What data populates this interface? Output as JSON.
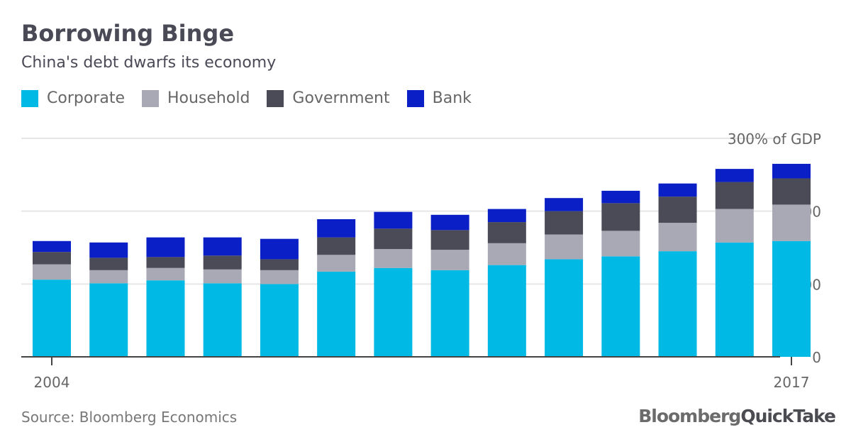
{
  "title": "Borrowing Binge",
  "subtitle": "China's debt dwarfs its economy",
  "source": "Source: Bloomberg Economics",
  "brand": {
    "part1": "Bloomberg",
    "part2": "QuickTake"
  },
  "colors": {
    "Corporate": "#00b9e4",
    "Household": "#a9a8b5",
    "Government": "#4b4b57",
    "Bank": "#0a1fc5"
  },
  "chart_data": {
    "type": "bar",
    "stacked": true,
    "title": "Borrowing Binge",
    "subtitle": "China's debt dwarfs its economy",
    "ylabel": "300% of GDP",
    "ylim": [
      0,
      300
    ],
    "yticks": [
      0,
      100,
      200,
      300
    ],
    "ytick_labels": [
      "0",
      "100",
      "200",
      "300% of GDP"
    ],
    "x": [
      2004,
      2005,
      2006,
      2007,
      2008,
      2009,
      2010,
      2011,
      2012,
      2013,
      2014,
      2015,
      2016,
      2017
    ],
    "xtick_labels": [
      "2004",
      "2017"
    ],
    "legend_position": "top-left",
    "grid": true,
    "series": [
      {
        "name": "Corporate",
        "values": [
          106,
          101,
          105,
          101,
          100,
          117,
          122,
          119,
          126,
          134,
          138,
          145,
          157,
          159
        ]
      },
      {
        "name": "Household",
        "values": [
          21,
          18,
          17,
          19,
          19,
          23,
          26,
          28,
          30,
          34,
          35,
          39,
          46,
          50
        ]
      },
      {
        "name": "Government",
        "values": [
          17,
          17,
          15,
          19,
          15,
          24,
          28,
          27,
          29,
          32,
          38,
          36,
          37,
          36
        ]
      },
      {
        "name": "Bank",
        "values": [
          15,
          21,
          27,
          25,
          28,
          25,
          23,
          21,
          18,
          18,
          17,
          18,
          18,
          20
        ]
      }
    ]
  }
}
